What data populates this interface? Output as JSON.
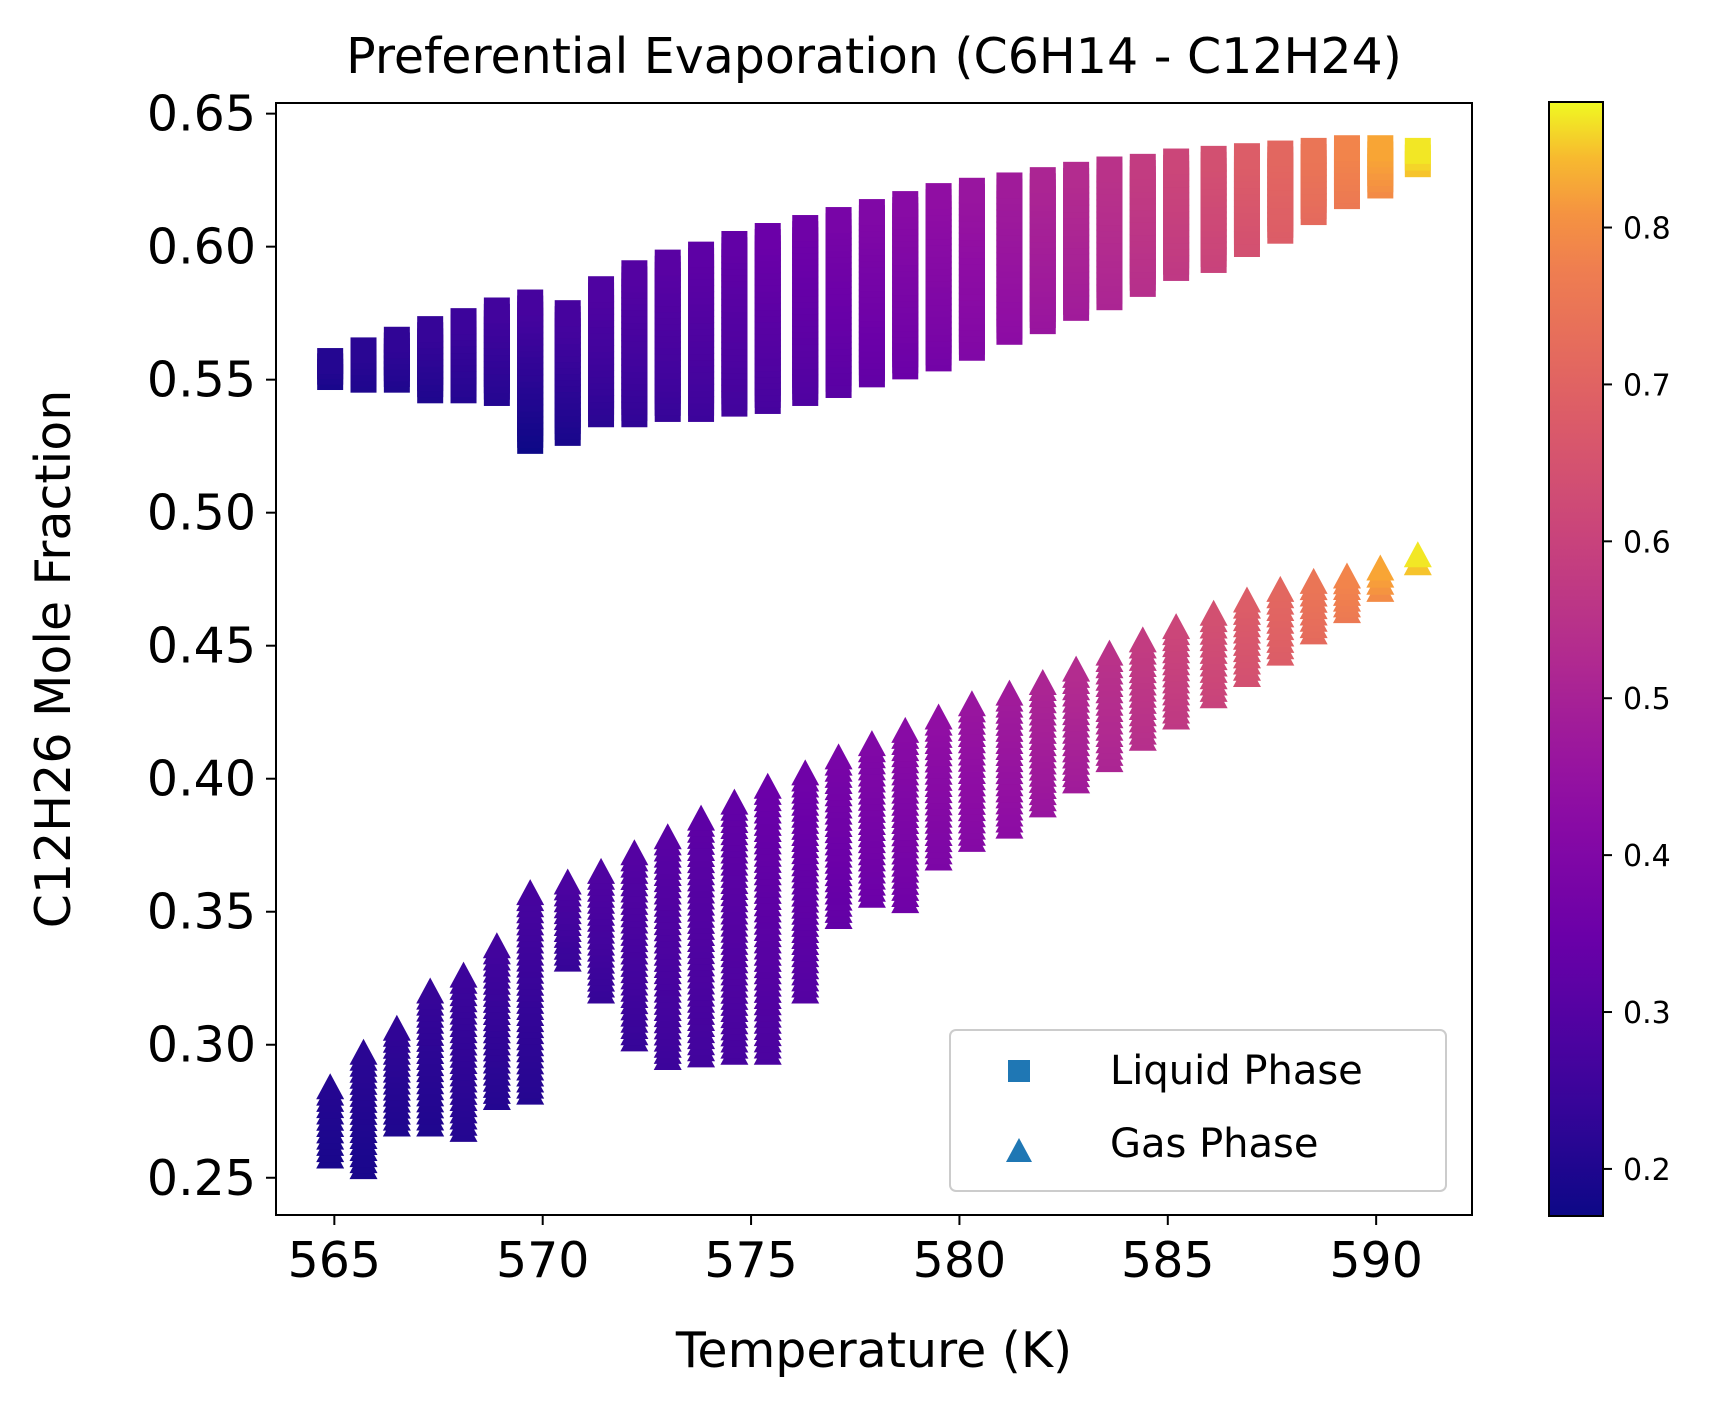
{
  "chart_data": {
    "type": "scatter",
    "title": "Preferential Evaporation (C6H14 - C12H24)",
    "xlabel": "Temperature (K)",
    "ylabel": "C12H26 Mole Fraction",
    "xlim": [
      563.6,
      592.3
    ],
    "ylim": [
      0.236,
      0.654
    ],
    "xticks": [
      565,
      570,
      575,
      580,
      585,
      590
    ],
    "xtick_labels": [
      "565",
      "570",
      "575",
      "580",
      "585",
      "590"
    ],
    "yticks": [
      0.25,
      0.3,
      0.35,
      0.4,
      0.45,
      0.5,
      0.55,
      0.6,
      0.65
    ],
    "ytick_labels": [
      "0.25",
      "0.30",
      "0.35",
      "0.40",
      "0.45",
      "0.50",
      "0.55",
      "0.60",
      "0.65"
    ],
    "grid": false,
    "legend_position": "lower-right",
    "colormap": "plasma",
    "colorbar": {
      "range": [
        0.17,
        0.88
      ],
      "ticks": [
        0.2,
        0.3,
        0.4,
        0.5,
        0.6,
        0.7,
        0.8
      ],
      "tick_labels": [
        "0.2",
        "0.3",
        "0.4",
        "0.5",
        "0.6",
        "0.7",
        "0.8"
      ]
    },
    "series": [
      {
        "name": "Liquid Phase",
        "marker": "square",
        "columns": [
          {
            "x": 564.9,
            "ymin": 0.551,
            "ymax": 0.557,
            "cmin": 0.19,
            "cmax": 0.21
          },
          {
            "x": 565.7,
            "ymin": 0.55,
            "ymax": 0.561,
            "cmin": 0.2,
            "cmax": 0.22
          },
          {
            "x": 566.5,
            "ymin": 0.55,
            "ymax": 0.565,
            "cmin": 0.2,
            "cmax": 0.23
          },
          {
            "x": 567.3,
            "ymin": 0.546,
            "ymax": 0.569,
            "cmin": 0.2,
            "cmax": 0.24
          },
          {
            "x": 568.1,
            "ymin": 0.546,
            "ymax": 0.572,
            "cmin": 0.21,
            "cmax": 0.25
          },
          {
            "x": 568.9,
            "ymin": 0.545,
            "ymax": 0.576,
            "cmin": 0.21,
            "cmax": 0.26
          },
          {
            "x": 569.7,
            "ymin": 0.527,
            "ymax": 0.579,
            "cmin": 0.17,
            "cmax": 0.27
          },
          {
            "x": 570.6,
            "ymin": 0.53,
            "ymax": 0.575,
            "cmin": 0.19,
            "cmax": 0.27
          },
          {
            "x": 571.4,
            "ymin": 0.537,
            "ymax": 0.584,
            "cmin": 0.22,
            "cmax": 0.29
          },
          {
            "x": 572.2,
            "ymin": 0.537,
            "ymax": 0.59,
            "cmin": 0.23,
            "cmax": 0.3
          },
          {
            "x": 573.0,
            "ymin": 0.539,
            "ymax": 0.594,
            "cmin": 0.24,
            "cmax": 0.31
          },
          {
            "x": 573.8,
            "ymin": 0.539,
            "ymax": 0.597,
            "cmin": 0.25,
            "cmax": 0.32
          },
          {
            "x": 574.6,
            "ymin": 0.541,
            "ymax": 0.601,
            "cmin": 0.26,
            "cmax": 0.33
          },
          {
            "x": 575.4,
            "ymin": 0.542,
            "ymax": 0.604,
            "cmin": 0.27,
            "cmax": 0.35
          },
          {
            "x": 576.3,
            "ymin": 0.545,
            "ymax": 0.607,
            "cmin": 0.29,
            "cmax": 0.36
          },
          {
            "x": 577.1,
            "ymin": 0.548,
            "ymax": 0.61,
            "cmin": 0.31,
            "cmax": 0.38
          },
          {
            "x": 577.9,
            "ymin": 0.552,
            "ymax": 0.613,
            "cmin": 0.33,
            "cmax": 0.4
          },
          {
            "x": 578.7,
            "ymin": 0.555,
            "ymax": 0.616,
            "cmin": 0.35,
            "cmax": 0.42
          },
          {
            "x": 579.5,
            "ymin": 0.558,
            "ymax": 0.619,
            "cmin": 0.37,
            "cmax": 0.44
          },
          {
            "x": 580.3,
            "ymin": 0.562,
            "ymax": 0.621,
            "cmin": 0.4,
            "cmax": 0.46
          },
          {
            "x": 581.2,
            "ymin": 0.568,
            "ymax": 0.623,
            "cmin": 0.43,
            "cmax": 0.48
          },
          {
            "x": 582.0,
            "ymin": 0.572,
            "ymax": 0.625,
            "cmin": 0.46,
            "cmax": 0.51
          },
          {
            "x": 582.8,
            "ymin": 0.577,
            "ymax": 0.627,
            "cmin": 0.48,
            "cmax": 0.53
          },
          {
            "x": 583.6,
            "ymin": 0.581,
            "ymax": 0.629,
            "cmin": 0.51,
            "cmax": 0.55
          },
          {
            "x": 584.4,
            "ymin": 0.586,
            "ymax": 0.63,
            "cmin": 0.54,
            "cmax": 0.58
          },
          {
            "x": 585.2,
            "ymin": 0.592,
            "ymax": 0.632,
            "cmin": 0.57,
            "cmax": 0.61
          },
          {
            "x": 586.1,
            "ymin": 0.595,
            "ymax": 0.633,
            "cmin": 0.6,
            "cmax": 0.64
          },
          {
            "x": 586.9,
            "ymin": 0.601,
            "ymax": 0.634,
            "cmin": 0.64,
            "cmax": 0.68
          },
          {
            "x": 587.7,
            "ymin": 0.606,
            "ymax": 0.635,
            "cmin": 0.68,
            "cmax": 0.71
          },
          {
            "x": 588.5,
            "ymin": 0.613,
            "ymax": 0.636,
            "cmin": 0.72,
            "cmax": 0.75
          },
          {
            "x": 589.3,
            "ymin": 0.619,
            "ymax": 0.637,
            "cmin": 0.76,
            "cmax": 0.79
          },
          {
            "x": 590.1,
            "ymin": 0.623,
            "ymax": 0.637,
            "cmin": 0.8,
            "cmax": 0.83
          },
          {
            "x": 591.0,
            "ymin": 0.631,
            "ymax": 0.636,
            "cmin": 0.85,
            "cmax": 0.87
          }
        ]
      },
      {
        "name": "Gas Phase",
        "marker": "triangle",
        "columns": [
          {
            "x": 564.9,
            "ymin": 0.258,
            "ymax": 0.284,
            "cmin": 0.19,
            "cmax": 0.21
          },
          {
            "x": 565.7,
            "ymin": 0.254,
            "ymax": 0.297,
            "cmin": 0.19,
            "cmax": 0.22
          },
          {
            "x": 566.5,
            "ymin": 0.27,
            "ymax": 0.306,
            "cmin": 0.2,
            "cmax": 0.23
          },
          {
            "x": 567.3,
            "ymin": 0.27,
            "ymax": 0.32,
            "cmin": 0.2,
            "cmax": 0.24
          },
          {
            "x": 568.1,
            "ymin": 0.268,
            "ymax": 0.326,
            "cmin": 0.21,
            "cmax": 0.25
          },
          {
            "x": 568.9,
            "ymin": 0.28,
            "ymax": 0.337,
            "cmin": 0.21,
            "cmax": 0.26
          },
          {
            "x": 569.7,
            "ymin": 0.282,
            "ymax": 0.357,
            "cmin": 0.21,
            "cmax": 0.27
          },
          {
            "x": 570.6,
            "ymin": 0.332,
            "ymax": 0.361,
            "cmin": 0.24,
            "cmax": 0.28
          },
          {
            "x": 571.4,
            "ymin": 0.32,
            "ymax": 0.365,
            "cmin": 0.24,
            "cmax": 0.29
          },
          {
            "x": 572.2,
            "ymin": 0.302,
            "ymax": 0.372,
            "cmin": 0.24,
            "cmax": 0.3
          },
          {
            "x": 573.0,
            "ymin": 0.295,
            "ymax": 0.378,
            "cmin": 0.25,
            "cmax": 0.31
          },
          {
            "x": 573.8,
            "ymin": 0.296,
            "ymax": 0.385,
            "cmin": 0.26,
            "cmax": 0.32
          },
          {
            "x": 574.6,
            "ymin": 0.297,
            "ymax": 0.391,
            "cmin": 0.27,
            "cmax": 0.33
          },
          {
            "x": 575.4,
            "ymin": 0.297,
            "ymax": 0.397,
            "cmin": 0.28,
            "cmax": 0.35
          },
          {
            "x": 576.3,
            "ymin": 0.32,
            "ymax": 0.402,
            "cmin": 0.3,
            "cmax": 0.36
          },
          {
            "x": 577.1,
            "ymin": 0.348,
            "ymax": 0.408,
            "cmin": 0.33,
            "cmax": 0.38
          },
          {
            "x": 577.9,
            "ymin": 0.356,
            "ymax": 0.413,
            "cmin": 0.35,
            "cmax": 0.4
          },
          {
            "x": 578.7,
            "ymin": 0.354,
            "ymax": 0.418,
            "cmin": 0.36,
            "cmax": 0.42
          },
          {
            "x": 579.5,
            "ymin": 0.37,
            "ymax": 0.423,
            "cmin": 0.39,
            "cmax": 0.44
          },
          {
            "x": 580.3,
            "ymin": 0.377,
            "ymax": 0.428,
            "cmin": 0.41,
            "cmax": 0.46
          },
          {
            "x": 581.2,
            "ymin": 0.382,
            "ymax": 0.432,
            "cmin": 0.43,
            "cmax": 0.48
          },
          {
            "x": 582.0,
            "ymin": 0.39,
            "ymax": 0.436,
            "cmin": 0.46,
            "cmax": 0.51
          },
          {
            "x": 582.8,
            "ymin": 0.399,
            "ymax": 0.441,
            "cmin": 0.48,
            "cmax": 0.53
          },
          {
            "x": 583.6,
            "ymin": 0.407,
            "ymax": 0.447,
            "cmin": 0.51,
            "cmax": 0.55
          },
          {
            "x": 584.4,
            "ymin": 0.415,
            "ymax": 0.452,
            "cmin": 0.54,
            "cmax": 0.58
          },
          {
            "x": 585.2,
            "ymin": 0.423,
            "ymax": 0.457,
            "cmin": 0.57,
            "cmax": 0.61
          },
          {
            "x": 586.1,
            "ymin": 0.431,
            "ymax": 0.462,
            "cmin": 0.6,
            "cmax": 0.64
          },
          {
            "x": 586.9,
            "ymin": 0.439,
            "ymax": 0.467,
            "cmin": 0.64,
            "cmax": 0.68
          },
          {
            "x": 587.7,
            "ymin": 0.447,
            "ymax": 0.471,
            "cmin": 0.68,
            "cmax": 0.71
          },
          {
            "x": 588.5,
            "ymin": 0.455,
            "ymax": 0.474,
            "cmin": 0.72,
            "cmax": 0.75
          },
          {
            "x": 589.3,
            "ymin": 0.463,
            "ymax": 0.476,
            "cmin": 0.76,
            "cmax": 0.79
          },
          {
            "x": 590.1,
            "ymin": 0.471,
            "ymax": 0.479,
            "cmin": 0.8,
            "cmax": 0.83
          },
          {
            "x": 591.0,
            "ymin": 0.481,
            "ymax": 0.484,
            "cmin": 0.85,
            "cmax": 0.87
          }
        ]
      }
    ],
    "legend": [
      {
        "label": "Liquid Phase",
        "marker": "square",
        "color": "#1f77b4"
      },
      {
        "label": "Gas Phase",
        "marker": "triangle",
        "color": "#1f77b4"
      }
    ]
  }
}
